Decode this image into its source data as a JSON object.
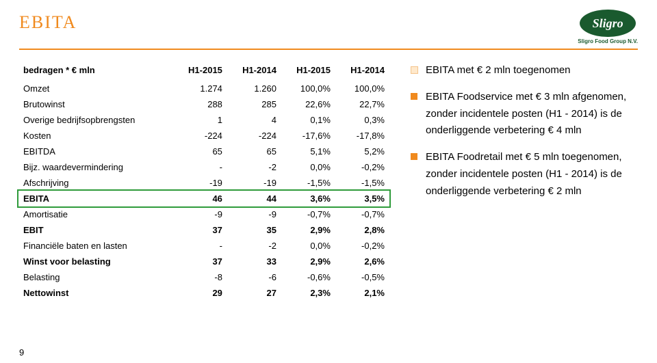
{
  "page": {
    "title": "EBITA",
    "number": "9",
    "logo_text": "Sligro",
    "logo_sub": "Sligro Food Group N.V."
  },
  "table": {
    "header_label": "bedragen * € mln",
    "columns": [
      "H1-2015",
      "H1-2014",
      "H1-2015",
      "H1-2014"
    ],
    "rows": [
      {
        "label": "Omzet",
        "vals": [
          "1.274",
          "1.260",
          "100,0%",
          "100,0%"
        ],
        "bold": false
      },
      {
        "label": "Brutowinst",
        "vals": [
          "288",
          "285",
          "22,6%",
          "22,7%"
        ],
        "bold": false
      },
      {
        "label": "Overige bedrijfsopbrengsten",
        "vals": [
          "1",
          "4",
          "0,1%",
          "0,3%"
        ],
        "bold": false
      },
      {
        "label": "Kosten",
        "vals": [
          "-224",
          "-224",
          "-17,6%",
          "-17,8%"
        ],
        "bold": false
      },
      {
        "label": "EBITDA",
        "vals": [
          "65",
          "65",
          "5,1%",
          "5,2%"
        ],
        "bold": false
      },
      {
        "label": "Bijz. waardevermindering",
        "vals": [
          "-",
          "-2",
          "0,0%",
          "-0,2%"
        ],
        "bold": false
      },
      {
        "label": "Afschrijving",
        "vals": [
          "-19",
          "-19",
          "-1,5%",
          "-1,5%"
        ],
        "bold": false
      },
      {
        "label": "EBITA",
        "vals": [
          "46",
          "44",
          "3,6%",
          "3,5%"
        ],
        "bold": true
      },
      {
        "label": "Amortisatie",
        "vals": [
          "-9",
          "-9",
          "-0,7%",
          "-0,7%"
        ],
        "bold": false
      },
      {
        "label": "EBIT",
        "vals": [
          "37",
          "35",
          "2,9%",
          "2,8%"
        ],
        "bold": true
      },
      {
        "label": "Financiële baten en lasten",
        "vals": [
          "-",
          "-2",
          "0,0%",
          "-0,2%"
        ],
        "bold": false
      },
      {
        "label": "Winst voor belasting",
        "vals": [
          "37",
          "33",
          "2,9%",
          "2,6%"
        ],
        "bold": true
      },
      {
        "label": "Belasting",
        "vals": [
          "-8",
          "-6",
          "-0,6%",
          "-0,5%"
        ],
        "bold": false
      },
      {
        "label": "Nettowinst",
        "vals": [
          "29",
          "27",
          "2,3%",
          "2,1%"
        ],
        "bold": true
      }
    ],
    "highlight_row_index": 7,
    "highlight_color": "#2e9b3a"
  },
  "bullets": [
    {
      "text": "EBITA met € 2 mln toegenomen",
      "hollow": true
    },
    {
      "text": "EBITA Foodservice met € 3 mln afgenomen, zonder incidentele posten (H1 - 2014) is de onderliggende verbetering € 4 mln",
      "hollow": false
    },
    {
      "text": "EBITA Foodretail met € 5 mln toegenomen, zonder incidentele posten (H1 - 2014) is de onderliggende verbetering € 2 mln",
      "hollow": false
    }
  ]
}
